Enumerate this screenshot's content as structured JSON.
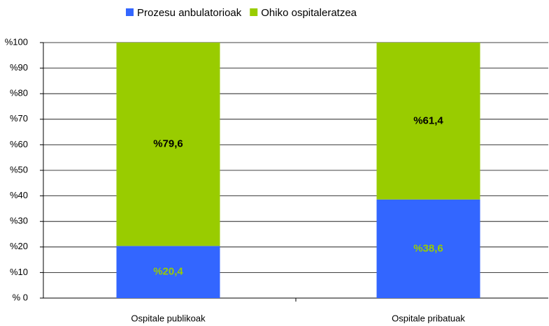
{
  "chart_data": {
    "type": "stacked_bar",
    "categories": [
      "Ospitale publikoak",
      "Ospitale pribatuak"
    ],
    "series": [
      {
        "name": "Prozesu anbulatorioak",
        "color": "#3366ff",
        "label_color": "#99cc00",
        "values": [
          20.4,
          38.6
        ],
        "value_labels": [
          "%20,4",
          "%38,6"
        ]
      },
      {
        "name": "Ohiko ospitaleratzea",
        "color": "#99cc00",
        "label_color": "#000000",
        "values": [
          79.6,
          61.4
        ],
        "value_labels": [
          "%79,6",
          "%61,4"
        ]
      }
    ],
    "ylim": [
      0,
      100
    ],
    "yticks": [
      {
        "value": 0,
        "label": "% 0"
      },
      {
        "value": 10,
        "label": "%10"
      },
      {
        "value": 20,
        "label": "%20"
      },
      {
        "value": 30,
        "label": "%30"
      },
      {
        "value": 40,
        "label": "%40"
      },
      {
        "value": 50,
        "label": "%50"
      },
      {
        "value": 60,
        "label": "%60"
      },
      {
        "value": 70,
        "label": "%70"
      },
      {
        "value": 80,
        "label": "%80"
      },
      {
        "value": 90,
        "label": "%90"
      },
      {
        "value": 100,
        "label": "%100"
      }
    ],
    "grid": true,
    "legend": "top"
  }
}
